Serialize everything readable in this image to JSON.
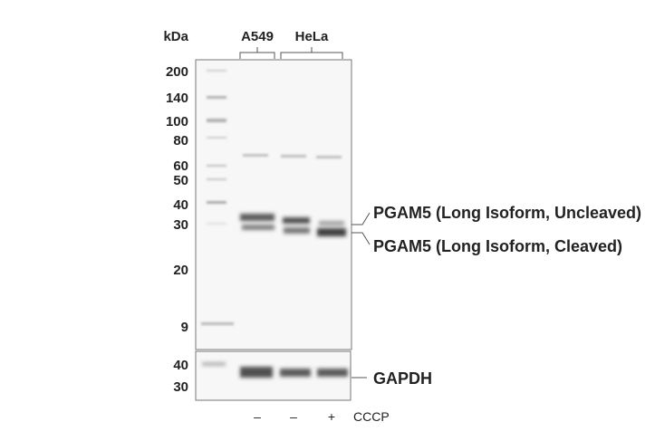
{
  "kda_label": "kDa",
  "sample_groups": [
    {
      "label": "A549",
      "lanes": 1
    },
    {
      "label": "HeLa",
      "lanes": 2
    }
  ],
  "main_blot": {
    "markers": [
      "200",
      "140",
      "100",
      "80",
      "60",
      "50",
      "40",
      "30",
      "20",
      "9"
    ],
    "band_labels": {
      "upper": "PGAM5 (Long Isoform, Uncleaved)",
      "lower": "PGAM5 (Long Isoform, Cleaved)"
    }
  },
  "loading_blot": {
    "markers": [
      "40",
      "30"
    ],
    "band_label": "GAPDH"
  },
  "treatment": {
    "name": "CCCP",
    "lanes": [
      "–",
      "–",
      "+"
    ]
  }
}
